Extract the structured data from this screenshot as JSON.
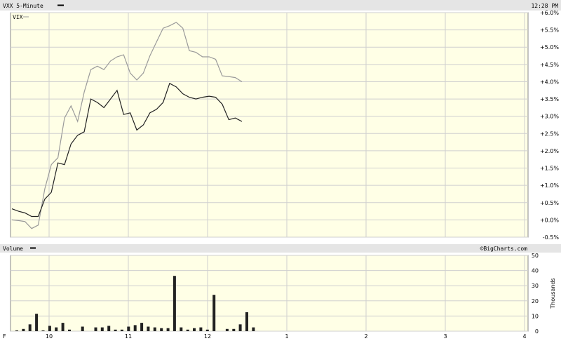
{
  "header": {
    "title": "VXX 5-Minute",
    "time": "12:28 PM",
    "legend_secondary": "VIX",
    "volume_title": "Volume",
    "watermark": "©BigCharts.com",
    "volume_unit": "Thousands"
  },
  "colors": {
    "plot_bg": "#ffffe6",
    "grid": "#cfcfcf",
    "header_bg": "#e5e5e5",
    "vxx_line": "#222222",
    "vix_line": "#9a9a9a",
    "bar": "#222222"
  },
  "chart_data": [
    {
      "type": "line",
      "title": "VXX 5-Minute",
      "x_ticks": [
        "F",
        "10",
        "11",
        "12",
        "1",
        "2",
        "3",
        "4"
      ],
      "y_ticks": [
        "-0.5%",
        "+0.0%",
        "+0.5%",
        "+1.0%",
        "+1.5%",
        "+2.0%",
        "+2.5%",
        "+3.0%",
        "+3.5%",
        "+4.0%",
        "+4.5%",
        "+5.0%",
        "+5.5%",
        "+6.0%"
      ],
      "ylim": [
        -0.5,
        6.0
      ],
      "grid": true,
      "series": [
        {
          "name": "VXX",
          "values": [
            0.32,
            0.25,
            0.2,
            0.1,
            0.1,
            0.6,
            0.8,
            1.65,
            1.6,
            2.2,
            2.45,
            2.55,
            3.5,
            3.4,
            3.25,
            3.5,
            3.75,
            3.05,
            3.1,
            2.6,
            2.75,
            3.1,
            3.2,
            3.4,
            3.95,
            3.85,
            3.65,
            3.55,
            3.5,
            3.55,
            3.58,
            3.55,
            3.35,
            2.9,
            2.95,
            2.85
          ]
        },
        {
          "name": "VIX",
          "values": [
            0.0,
            -0.02,
            -0.05,
            -0.25,
            -0.15,
            0.9,
            1.6,
            1.8,
            2.95,
            3.3,
            2.85,
            3.7,
            4.35,
            4.45,
            4.35,
            4.6,
            4.72,
            4.78,
            4.25,
            4.05,
            4.25,
            4.75,
            5.15,
            5.55,
            5.62,
            5.72,
            5.55,
            4.9,
            4.85,
            4.72,
            4.72,
            4.65,
            4.17,
            4.15,
            4.12,
            4.0
          ]
        }
      ]
    },
    {
      "type": "bar",
      "title": "Volume",
      "ylabel": "Thousands",
      "y_ticks": [
        "0",
        "10",
        "20",
        "30",
        "40",
        "50"
      ],
      "ylim": [
        0,
        50
      ],
      "values": [
        0.5,
        1.5,
        4.5,
        11.5,
        0.5,
        3.5,
        2.5,
        5.5,
        1,
        0,
        3,
        0,
        2.5,
        2.5,
        3.5,
        1,
        1,
        3,
        4,
        5.5,
        3,
        2.5,
        2,
        2,
        36.5,
        2.5,
        1,
        2,
        2.5,
        1,
        24,
        0,
        1.5,
        1.5,
        4.5,
        12.5,
        2.5
      ]
    }
  ]
}
